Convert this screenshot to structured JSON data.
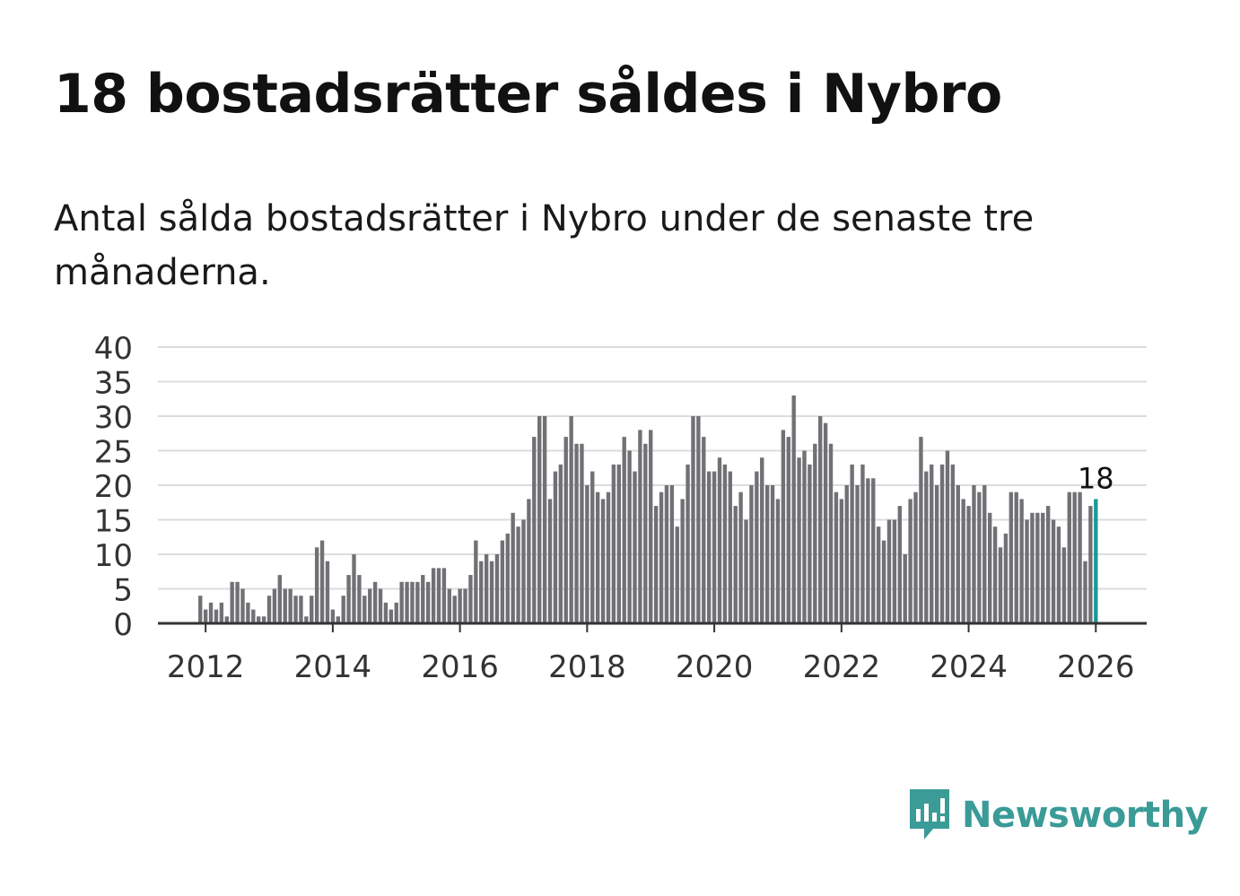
{
  "header": {
    "title": "18 bostadsrätter såldes i Nybro",
    "subtitle": "Antal sålda bostadsrätter i Nybro under de senaste tre månaderna."
  },
  "brand": {
    "name": "Newsworthy",
    "color": "#3a9b97",
    "icon": "newsworthy-logo-icon"
  },
  "colors": {
    "bar": "#717074",
    "highlight": "#1a9a96",
    "grid": "#dcdcdc",
    "axis": "#333333"
  },
  "chart_data": {
    "type": "bar",
    "title": "Antal sålda bostadsrätter i Nybro",
    "xlabel": "",
    "ylabel": "",
    "ylim": [
      0,
      40
    ],
    "yticks": [
      0,
      5,
      10,
      15,
      20,
      25,
      30,
      35,
      40
    ],
    "xticks": [
      "2012",
      "2014",
      "2016",
      "2018",
      "2020",
      "2022",
      "2024",
      "2026"
    ],
    "x_start": "2011-12",
    "x_end": "2026-01",
    "grid": true,
    "highlight_label": "18",
    "values": [
      4,
      2,
      3,
      2,
      3,
      1,
      6,
      6,
      5,
      3,
      2,
      1,
      1,
      4,
      5,
      7,
      5,
      5,
      4,
      4,
      1,
      4,
      11,
      12,
      9,
      2,
      1,
      4,
      7,
      10,
      7,
      4,
      5,
      6,
      5,
      3,
      2,
      3,
      6,
      6,
      6,
      6,
      7,
      6,
      8,
      8,
      8,
      5,
      4,
      5,
      5,
      7,
      12,
      9,
      10,
      9,
      10,
      12,
      13,
      16,
      14,
      15,
      18,
      27,
      30,
      30,
      18,
      22,
      23,
      27,
      30,
      26,
      26,
      20,
      22,
      19,
      18,
      19,
      23,
      23,
      27,
      25,
      22,
      28,
      26,
      28,
      17,
      19,
      20,
      20,
      14,
      18,
      23,
      30,
      30,
      27,
      22,
      22,
      24,
      23,
      22,
      17,
      19,
      15,
      20,
      22,
      24,
      20,
      20,
      18,
      28,
      27,
      33,
      24,
      25,
      23,
      26,
      30,
      29,
      26,
      19,
      18,
      20,
      23,
      20,
      23,
      21,
      21,
      14,
      12,
      15,
      15,
      17,
      10,
      18,
      19,
      27,
      22,
      23,
      20,
      23,
      25,
      23,
      20,
      18,
      17,
      20,
      19,
      20,
      16,
      14,
      11,
      13,
      19,
      19,
      18,
      15,
      16,
      16,
      16,
      17,
      15,
      14,
      11,
      19,
      19,
      19,
      9,
      17,
      18
    ]
  }
}
